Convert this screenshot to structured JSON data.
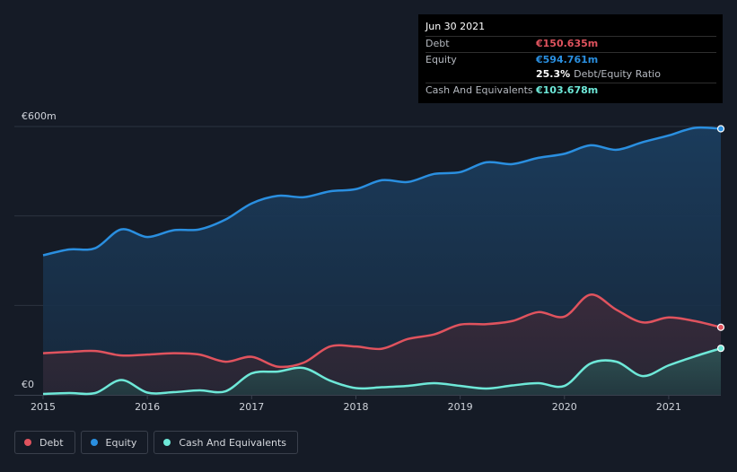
{
  "colors": {
    "background": "#151b26",
    "debt": "#e0535e",
    "equity": "#2a8fe0",
    "cash": "#6ee8d8",
    "grid": "#2c3340"
  },
  "tooltip": {
    "date": "Jun 30 2021",
    "debt_label": "Debt",
    "debt_value": "€150.635m",
    "equity_label": "Equity",
    "equity_value": "€594.761m",
    "ratio_value": "25.3%",
    "ratio_label": "Debt/Equity Ratio",
    "cash_label": "Cash And Equivalents",
    "cash_value": "€103.678m"
  },
  "legend": {
    "debt": "Debt",
    "equity": "Equity",
    "cash": "Cash And Equivalents"
  },
  "chart_data": {
    "type": "area",
    "title": "",
    "xlabel": "",
    "ylabel": "",
    "ylim": [
      0,
      600
    ],
    "xlim": [
      2015.0,
      2021.5
    ],
    "y_ticks": [
      {
        "value": 600,
        "label": "€600m"
      },
      {
        "value": 0,
        "label": "€0"
      }
    ],
    "x_ticks": [
      {
        "value": 2015,
        "label": "2015"
      },
      {
        "value": 2016,
        "label": "2016"
      },
      {
        "value": 2017,
        "label": "2017"
      },
      {
        "value": 2018,
        "label": "2018"
      },
      {
        "value": 2019,
        "label": "2019"
      },
      {
        "value": 2020,
        "label": "2020"
      },
      {
        "value": 2021,
        "label": "2021"
      }
    ],
    "grid": true,
    "legend_position": "bottom-left",
    "series": [
      {
        "name": "Equity",
        "key": "equity",
        "x": [
          2015.0,
          2015.25,
          2015.5,
          2015.75,
          2016.0,
          2016.25,
          2016.5,
          2016.75,
          2017.0,
          2017.25,
          2017.5,
          2017.75,
          2018.0,
          2018.25,
          2018.5,
          2018.75,
          2019.0,
          2019.25,
          2019.5,
          2019.75,
          2020.0,
          2020.25,
          2020.5,
          2020.75,
          2021.0,
          2021.25,
          2021.5
        ],
        "values": [
          312,
          325,
          328,
          370,
          353,
          368,
          370,
          392,
          428,
          445,
          442,
          455,
          460,
          480,
          476,
          494,
          498,
          520,
          516,
          530,
          539,
          558,
          548,
          565,
          580,
          597,
          595
        ]
      },
      {
        "name": "Debt",
        "key": "debt",
        "x": [
          2015.0,
          2015.25,
          2015.5,
          2015.75,
          2016.0,
          2016.25,
          2016.5,
          2016.75,
          2017.0,
          2017.25,
          2017.5,
          2017.75,
          2018.0,
          2018.25,
          2018.5,
          2018.75,
          2019.0,
          2019.25,
          2019.5,
          2019.75,
          2020.0,
          2020.25,
          2020.5,
          2020.75,
          2021.0,
          2021.25,
          2021.5
        ],
        "values": [
          93,
          96,
          98,
          88,
          90,
          93,
          90,
          74,
          85,
          63,
          72,
          108,
          108,
          103,
          125,
          135,
          157,
          158,
          165,
          185,
          175,
          224,
          190,
          162,
          173,
          165,
          151
        ]
      },
      {
        "name": "Cash And Equivalents",
        "key": "cash",
        "x": [
          2015.0,
          2015.25,
          2015.5,
          2015.75,
          2016.0,
          2016.25,
          2016.5,
          2016.75,
          2017.0,
          2017.25,
          2017.5,
          2017.75,
          2018.0,
          2018.25,
          2018.5,
          2018.75,
          2019.0,
          2019.25,
          2019.5,
          2019.75,
          2020.0,
          2020.25,
          2020.5,
          2020.75,
          2021.0,
          2021.25,
          2021.5
        ],
        "values": [
          2,
          4,
          4,
          33,
          5,
          6,
          10,
          8,
          48,
          52,
          60,
          32,
          15,
          17,
          20,
          26,
          20,
          14,
          21,
          26,
          20,
          70,
          74,
          42,
          66,
          86,
          104
        ]
      }
    ]
  }
}
